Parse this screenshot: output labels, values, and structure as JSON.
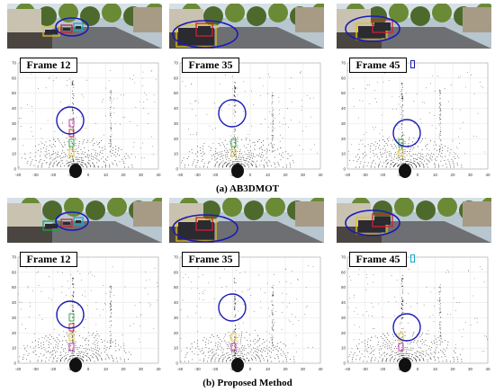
{
  "rows": [
    {
      "caption": "(a) AB3DMOT",
      "panels": [
        {
          "frame": "Frame 12"
        },
        {
          "frame": "Frame 35"
        },
        {
          "frame": "Frame 45"
        }
      ]
    },
    {
      "caption": "(b) Proposed Method",
      "panels": [
        {
          "frame": "Frame 12"
        },
        {
          "frame": "Frame 35"
        },
        {
          "frame": "Frame 45"
        }
      ]
    }
  ],
  "axis": {
    "x_ticks": [
      "-40",
      "-30",
      "-20",
      "-10",
      "0",
      "10",
      "20",
      "30",
      "40"
    ],
    "y_ticks": [
      "70",
      "60",
      "50",
      "40",
      "30",
      "20",
      "10",
      "0"
    ]
  },
  "colors": {
    "highlight_circle": "#1a1ab8",
    "box_yellow": "#e0c020",
    "box_red": "#d02030",
    "box_green": "#20a040",
    "box_cyan": "#18a8c8",
    "box_magenta": "#c030a0"
  }
}
